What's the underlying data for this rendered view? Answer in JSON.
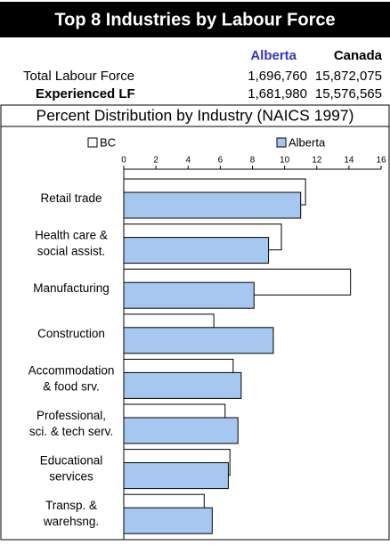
{
  "header": {
    "title": "Top 8 Industries by Labour Force",
    "columns": [
      "Alberta",
      "Canada"
    ],
    "rows": [
      {
        "label": "Total Labour Force",
        "values": [
          "1,696,760",
          "15,872,075"
        ]
      },
      {
        "label": "Experienced LF",
        "values": [
          "1,681,980",
          "15,576,565"
        ]
      }
    ],
    "subtitle": "Percent Distribution by Industry (NAICS 1997)"
  },
  "chart_data": {
    "type": "bar",
    "orientation": "horizontal",
    "categories": [
      "Retail trade",
      "Health care &\nsocial assist.",
      "Manufacturing",
      "Construction",
      "Accommodation\n& food srv.",
      "Professional,\nsci. & tech serv.",
      "Educational\nservices",
      "Transp. &\nwarehsng."
    ],
    "series": [
      {
        "name": "BC",
        "color": "#ffffff",
        "values": [
          11.3,
          9.8,
          14.1,
          5.6,
          6.8,
          6.3,
          6.6,
          5.0
        ]
      },
      {
        "name": "Alberta",
        "color": "#a6c8f0",
        "values": [
          11.0,
          9.0,
          8.1,
          9.3,
          7.3,
          7.1,
          6.5,
          5.5
        ]
      }
    ],
    "xlim": [
      0,
      16
    ],
    "xticks": [
      0,
      2,
      4,
      6,
      8,
      10,
      12,
      14,
      16
    ]
  }
}
